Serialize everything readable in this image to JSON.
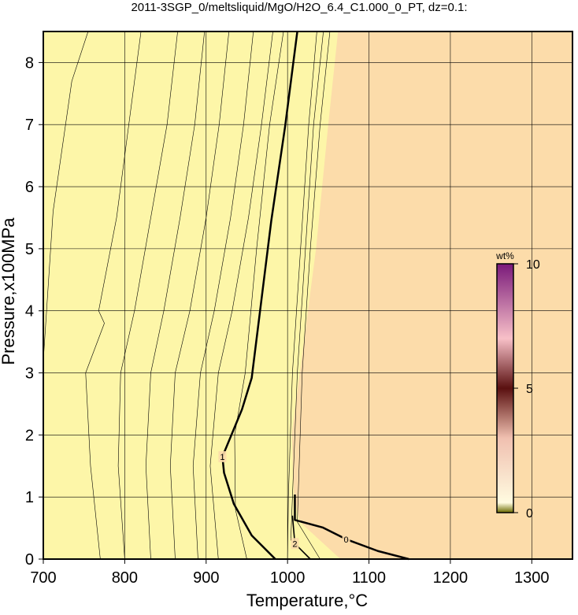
{
  "chart_data": {
    "type": "contour",
    "title": "2011-3SGP_0/meltsliquid/MgO/H2O_6.4_C1.000_0_PT, dz=0.1:",
    "x_label": "Temperature,°C",
    "y_label": "Pressure,x100MPa",
    "xlim": [
      700,
      1350
    ],
    "ylim": [
      0,
      8.5
    ],
    "xticks": [
      700,
      800,
      900,
      1000,
      1100,
      1200,
      1300
    ],
    "yticks": [
      0,
      1,
      2,
      3,
      4,
      5,
      6,
      7,
      8
    ],
    "grid": true,
    "background_color": "#fcdcaa",
    "regions": [
      {
        "color": "#fdf6a8",
        "x": [
          700,
          1062,
          1050,
          1035,
          1015,
          1005,
          1008,
          1015,
          1065,
          700
        ],
        "y": [
          8.5,
          8.5,
          7,
          5,
          3,
          2,
          1,
          0.6,
          0,
          0
        ]
      }
    ],
    "contours": [
      {
        "x": [
          700,
          712,
          735,
          755
        ],
        "y": [
          3.2,
          5.6,
          7.7,
          8.5
        ]
      },
      {
        "x": [
          770,
          758,
          752,
          775,
          768,
          790,
          805,
          820
        ],
        "y": [
          0,
          1.5,
          3.0,
          3.8,
          4.0,
          5.5,
          7.0,
          8.5
        ]
      },
      {
        "x": [
          800,
          792,
          795,
          812,
          832,
          852,
          865
        ],
        "y": [
          0,
          1.5,
          3,
          4,
          5.5,
          7,
          8.5
        ]
      },
      {
        "x": [
          832,
          826,
          832,
          848,
          868,
          886,
          898
        ],
        "y": [
          0,
          1.5,
          3,
          4,
          5.5,
          7,
          8.5
        ]
      },
      {
        "x": [
          862,
          856,
          862,
          880,
          900,
          916,
          928
        ],
        "y": [
          0,
          1.5,
          3,
          4,
          5.5,
          7,
          8.5
        ]
      },
      {
        "x": [
          890,
          884,
          893,
          910,
          930,
          946,
          958
        ],
        "y": [
          0,
          1.5,
          3,
          4,
          5.5,
          7,
          8.5
        ]
      },
      {
        "x": [
          915,
          905,
          915,
          932,
          952,
          968,
          982
        ],
        "y": [
          0,
          1.5,
          3,
          4,
          5.5,
          7,
          8.5
        ]
      },
      {
        "x": [
          950,
          936,
          935,
          948,
          962,
          978,
          995
        ],
        "y": [
          0,
          0.8,
          2,
          3,
          5,
          7,
          8.5
        ]
      },
      {
        "x": [
          1000,
          1001,
          1006,
          1016,
          1026,
          1036
        ],
        "y": [
          0,
          1,
          3,
          5,
          7,
          8.5
        ]
      },
      {
        "x": [
          1004,
          1006,
          1012,
          1022,
          1032,
          1044
        ],
        "y": [
          0.3,
          1,
          3,
          5,
          7,
          8.5
        ]
      },
      {
        "x": [
          1040,
          1012,
          1018,
          1028,
          1040,
          1052
        ],
        "y": [
          0,
          0.6,
          3,
          5,
          7,
          8.5
        ]
      },
      {
        "level": 1,
        "linewidth": 2.5,
        "x": [
          1012,
          997,
          980,
          956,
          944,
          920,
          922,
          934,
          956,
          985
        ],
        "y": [
          8.5,
          6.97,
          5.45,
          2.92,
          2.41,
          1.65,
          1.39,
          0.89,
          0.38,
          0
        ]
      },
      {
        "level": 2,
        "linewidth": 1.6,
        "x": [
          1006,
          1009,
          1028
        ],
        "y": [
          0.7,
          0.25,
          0
        ]
      },
      {
        "level": 0,
        "linewidth": 2.5,
        "x": [
          1009,
          1009,
          1043,
          1072,
          1111,
          1149
        ],
        "y": [
          1.04,
          0.63,
          0.51,
          0.32,
          0.13,
          0
        ]
      }
    ],
    "colorbar": {
      "label": "wt%",
      "lim": [
        0,
        10
      ],
      "ticks": [
        0,
        5,
        10
      ]
    }
  }
}
